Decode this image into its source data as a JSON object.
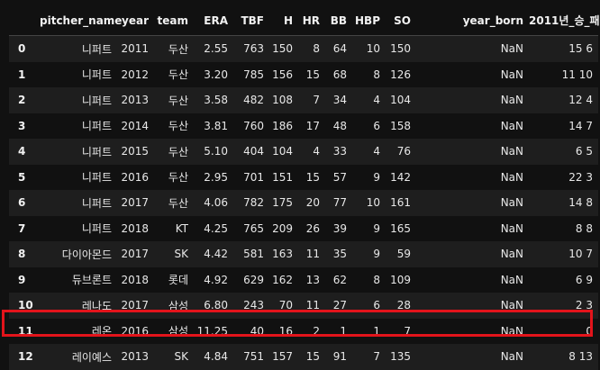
{
  "table": {
    "index_header": "",
    "columns": [
      "pitcher_name",
      "year",
      "team",
      "ERA",
      "TBF",
      "H",
      "HR",
      "BB",
      "HBP",
      "SO",
      "year_born",
      "2011년_승_패"
    ],
    "rows": [
      {
        "index": "0",
        "cells": [
          "니퍼트",
          "2011",
          "두산",
          "2.55",
          "763",
          "150",
          "8",
          "64",
          "10",
          "150",
          "NaN",
          "15 6"
        ]
      },
      {
        "index": "1",
        "cells": [
          "니퍼트",
          "2012",
          "두산",
          "3.20",
          "785",
          "156",
          "15",
          "68",
          "8",
          "126",
          "NaN",
          "11 10"
        ]
      },
      {
        "index": "2",
        "cells": [
          "니퍼트",
          "2013",
          "두산",
          "3.58",
          "482",
          "108",
          "7",
          "34",
          "4",
          "104",
          "NaN",
          "12 4"
        ]
      },
      {
        "index": "3",
        "cells": [
          "니퍼트",
          "2014",
          "두산",
          "3.81",
          "760",
          "186",
          "17",
          "48",
          "6",
          "158",
          "NaN",
          "14 7"
        ]
      },
      {
        "index": "4",
        "cells": [
          "니퍼트",
          "2015",
          "두산",
          "5.10",
          "404",
          "104",
          "4",
          "33",
          "4",
          "76",
          "NaN",
          "6 5"
        ]
      },
      {
        "index": "5",
        "cells": [
          "니퍼트",
          "2016",
          "두산",
          "2.95",
          "701",
          "151",
          "15",
          "57",
          "9",
          "142",
          "NaN",
          "22 3"
        ]
      },
      {
        "index": "6",
        "cells": [
          "니퍼트",
          "2017",
          "두산",
          "4.06",
          "782",
          "175",
          "20",
          "77",
          "10",
          "161",
          "NaN",
          "14 8"
        ]
      },
      {
        "index": "7",
        "cells": [
          "니퍼트",
          "2018",
          "KT",
          "4.25",
          "765",
          "209",
          "26",
          "39",
          "9",
          "165",
          "NaN",
          "8 8"
        ]
      },
      {
        "index": "8",
        "cells": [
          "다이아몬드",
          "2017",
          "SK",
          "4.42",
          "581",
          "163",
          "11",
          "35",
          "9",
          "59",
          "NaN",
          "10 7"
        ]
      },
      {
        "index": "9",
        "cells": [
          "듀브론트",
          "2018",
          "롯데",
          "4.92",
          "629",
          "162",
          "13",
          "62",
          "8",
          "109",
          "NaN",
          "6 9"
        ]
      },
      {
        "index": "10",
        "cells": [
          "레나도",
          "2017",
          "삼성",
          "6.80",
          "243",
          "70",
          "11",
          "27",
          "6",
          "28",
          "NaN",
          "2 3"
        ]
      },
      {
        "index": "11",
        "cells": [
          "레온",
          "2016",
          "삼성",
          "11.25",
          "40",
          "16",
          "2",
          "1",
          "1",
          "7",
          "NaN",
          "0"
        ]
      },
      {
        "index": "12",
        "cells": [
          "레이예스",
          "2013",
          "SK",
          "4.84",
          "751",
          "157",
          "15",
          "91",
          "7",
          "135",
          "NaN",
          "8 13"
        ]
      }
    ],
    "highlighted_row_index": "11"
  },
  "colors": {
    "background": "#111111",
    "row_stripe": "#1e1e1e",
    "text": "#e8e8e8",
    "highlight_border": "#e3141b"
  }
}
